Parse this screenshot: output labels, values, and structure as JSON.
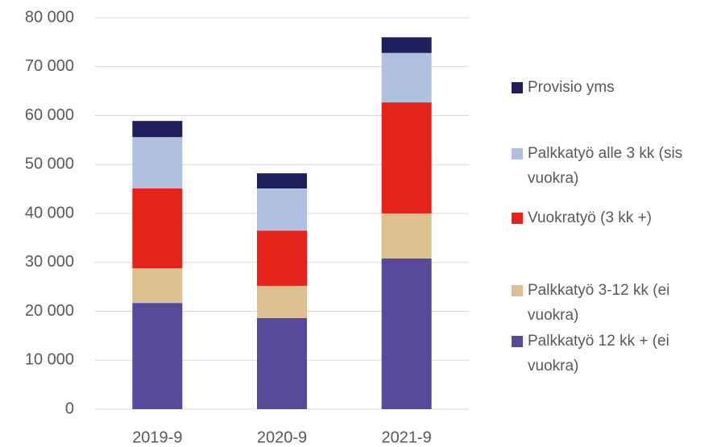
{
  "chart_data": {
    "type": "stacked_bar",
    "categories": [
      "2019-9",
      "2020-9",
      "2021-9"
    ],
    "series": [
      {
        "name": "Palkkatyö 12 kk + (ei vuokra)",
        "color": "#574a9b",
        "values": [
          21700,
          18600,
          30800
        ]
      },
      {
        "name": "Palkkatyö 3-12 kk (ei vuokra)",
        "color": "#dcc08f",
        "values": [
          7100,
          6600,
          9200
        ]
      },
      {
        "name": "Vuokratyö (3 kk +)",
        "color": "#e5231b",
        "values": [
          16300,
          11300,
          22700
        ]
      },
      {
        "name": "Palkkatyö alle 3 kk (sis vuokra)",
        "color": "#afc0e0",
        "values": [
          10500,
          8600,
          10100
        ]
      },
      {
        "name": "Provisio yms",
        "color": "#1f1f5e",
        "values": [
          3300,
          3100,
          3200
        ]
      }
    ],
    "ylim": [
      0,
      80000
    ],
    "yticks": [
      0,
      {
        "value": 10000,
        "label": "10 000"
      },
      {
        "value": 20000,
        "label": "20 000"
      },
      {
        "value": 30000,
        "label": "30 000"
      },
      {
        "value": 40000,
        "label": "40 000"
      },
      {
        "value": 50000,
        "label": "50 000"
      },
      {
        "value": 60000,
        "label": "60 000"
      },
      {
        "value": 70000,
        "label": "70 000"
      },
      {
        "value": 80000,
        "label": "80 000"
      }
    ],
    "grid": true,
    "legend": "right"
  }
}
